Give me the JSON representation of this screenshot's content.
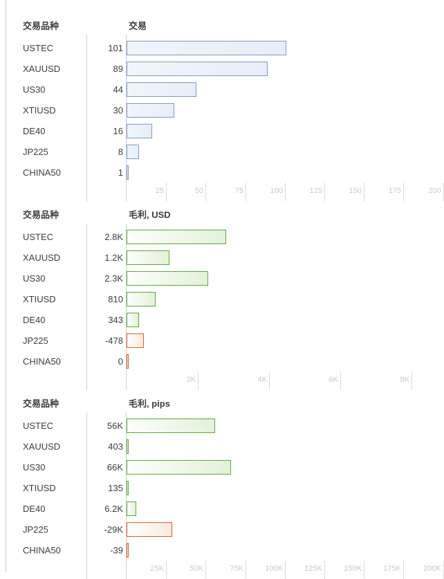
{
  "page": {
    "row_header": "交易品种",
    "symbols": [
      "USTEC",
      "XAUUSD",
      "US30",
      "XTIUSD",
      "DE40",
      "JP225",
      "CHINA50"
    ]
  },
  "colors": {
    "blue_border": "#7d9cc4",
    "blue_fill": "#e7eef8",
    "green_border": "#5ca834",
    "green_fill": "#e2f1d8",
    "red_border": "#de5c31",
    "red_fill": "#fceade",
    "text": "#3d3d3d",
    "axis_label": "#c3c9d3",
    "grid_line": "#cfcfcf"
  },
  "chart_data": [
    {
      "type": "bar",
      "orientation": "horizontal",
      "title": "交易",
      "row_header": "交易品种",
      "palette": "blue",
      "categories": [
        "USTEC",
        "XAUUSD",
        "US30",
        "XTIUSD",
        "DE40",
        "JP225",
        "CHINA50"
      ],
      "values": [
        101,
        89,
        44,
        30,
        16,
        8,
        1
      ],
      "value_labels": [
        "101",
        "89",
        "44",
        "30",
        "16",
        "8",
        "1"
      ],
      "axis_ticks": [
        25,
        50,
        75,
        100,
        125,
        150,
        175,
        200
      ],
      "axis_tick_labels": [
        "25",
        "50",
        "75",
        "100",
        "125",
        "150",
        "175",
        "200"
      ],
      "xlim": [
        0,
        200
      ],
      "grid": false,
      "legend": "none"
    },
    {
      "type": "bar",
      "orientation": "horizontal",
      "title": "毛利, USD",
      "row_header": "交易品种",
      "palette": "green_red",
      "categories": [
        "USTEC",
        "XAUUSD",
        "US30",
        "XTIUSD",
        "DE40",
        "JP225",
        "CHINA50"
      ],
      "values": [
        2800,
        1200,
        2300,
        810,
        343,
        -478,
        0
      ],
      "value_labels": [
        "2.8K",
        "1.2K",
        "2.3K",
        "810",
        "343",
        "-478",
        "0"
      ],
      "axis_ticks": [
        2000,
        4000,
        6000,
        8000
      ],
      "axis_tick_labels": [
        "2K",
        "4K",
        "6K",
        "8K"
      ],
      "xlim": [
        0,
        8800
      ],
      "grid": false,
      "legend": "none"
    },
    {
      "type": "bar",
      "orientation": "horizontal",
      "title": "毛利, pips",
      "row_header": "交易品种",
      "palette": "green_red",
      "categories": [
        "USTEC",
        "XAUUSD",
        "US30",
        "XTIUSD",
        "DE40",
        "JP225",
        "CHINA50"
      ],
      "values": [
        56000,
        403,
        66000,
        135,
        6200,
        -29000,
        -39
      ],
      "value_labels": [
        "56K",
        "403",
        "66K",
        "135",
        "6.2K",
        "-29K",
        "-39"
      ],
      "axis_ticks": [
        25000,
        50000,
        75000,
        100000,
        125000,
        150000,
        175000,
        200000
      ],
      "axis_tick_labels": [
        "25K",
        "50K",
        "75K",
        "100K",
        "125K",
        "150K",
        "175K",
        "200K"
      ],
      "xlim": [
        0,
        200000
      ],
      "grid": false,
      "legend": "none"
    }
  ]
}
